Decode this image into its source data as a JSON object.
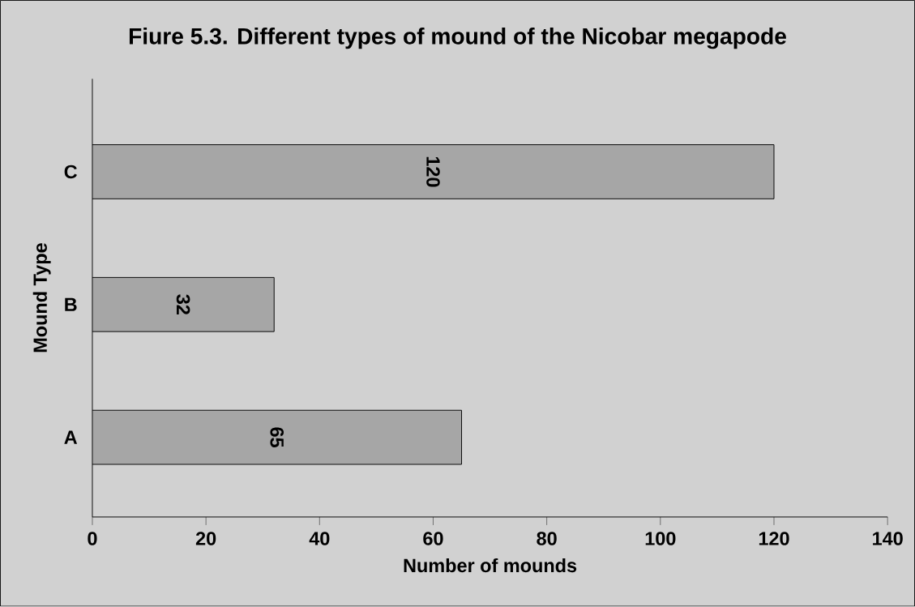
{
  "chart_data": {
    "type": "bar",
    "orientation": "horizontal",
    "title": "Fiure 5.3. Different types of mound of the Nicobar megapode",
    "xlabel": "Number of mounds",
    "ylabel": "Mound Type",
    "categories": [
      "C",
      "B",
      "A"
    ],
    "values": [
      120,
      32,
      65
    ],
    "color": "#a6a6a6",
    "data_labels": true,
    "grid": false,
    "xlim": [
      0,
      140
    ],
    "xticks": [
      0,
      20,
      40,
      60,
      80,
      100,
      120,
      140
    ]
  }
}
